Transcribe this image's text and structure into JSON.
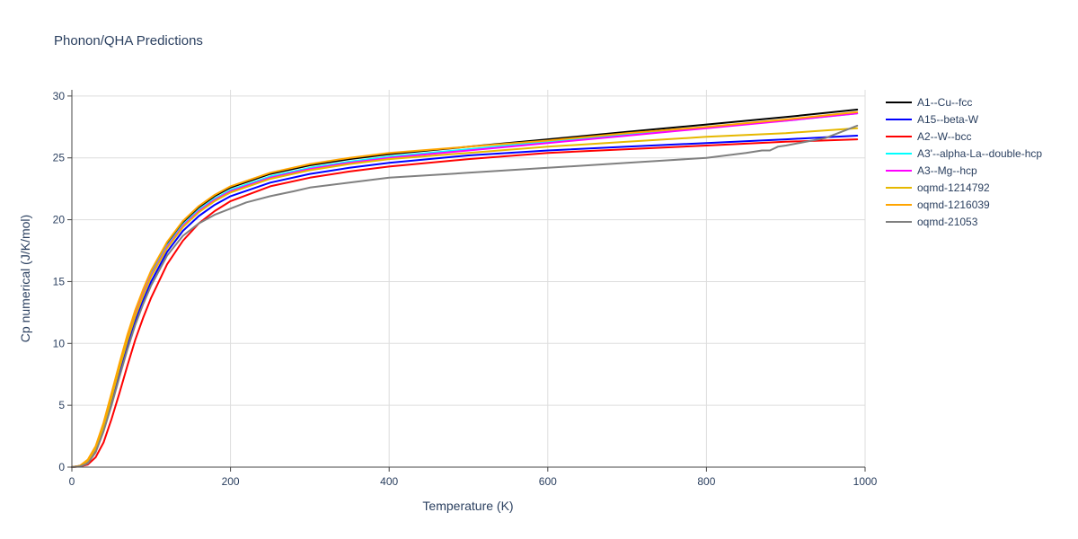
{
  "chart_data": {
    "type": "line",
    "title": "Phonon/QHA Predictions",
    "xlabel": "Temperature (K)",
    "ylabel": "Cp numerical (J/K/mol)",
    "xlim": [
      0,
      1000
    ],
    "ylim": [
      0,
      30.5
    ],
    "xticks": [
      0,
      200,
      400,
      600,
      800,
      1000
    ],
    "xtick_labels": [
      "0",
      "200",
      "400",
      "600",
      "800",
      "1000"
    ],
    "yticks": [
      0,
      5,
      10,
      15,
      20,
      25,
      30
    ],
    "ytick_labels": [
      "0",
      "5",
      "10",
      "15",
      "20",
      "25",
      "30"
    ],
    "grid": true,
    "legend_position": "top-right",
    "series": [
      {
        "name": "A1--Cu--fcc",
        "color": "#000000",
        "x": [
          0,
          10,
          20,
          30,
          40,
          50,
          60,
          70,
          80,
          90,
          100,
          120,
          140,
          160,
          180,
          200,
          250,
          300,
          350,
          400,
          500,
          600,
          700,
          800,
          900,
          990
        ],
        "y": [
          0,
          0.1,
          0.5,
          1.6,
          3.5,
          5.9,
          8.3,
          10.6,
          12.6,
          14.3,
          15.8,
          18.1,
          19.8,
          21.0,
          21.9,
          22.6,
          23.7,
          24.4,
          24.9,
          25.3,
          25.9,
          26.5,
          27.1,
          27.7,
          28.3,
          28.9
        ]
      },
      {
        "name": "A15--beta-W",
        "color": "#0000ff",
        "x": [
          0,
          10,
          20,
          30,
          40,
          50,
          60,
          70,
          80,
          90,
          100,
          120,
          140,
          160,
          180,
          200,
          250,
          300,
          350,
          400,
          500,
          600,
          700,
          800,
          900,
          990
        ],
        "y": [
          0,
          0.1,
          0.4,
          1.3,
          3.0,
          5.2,
          7.5,
          9.8,
          11.8,
          13.5,
          15.0,
          17.4,
          19.1,
          20.3,
          21.2,
          21.9,
          23.0,
          23.7,
          24.2,
          24.6,
          25.2,
          25.6,
          25.9,
          26.2,
          26.5,
          26.8
        ]
      },
      {
        "name": "A2--W--bcc",
        "color": "#ff0000",
        "x": [
          0,
          10,
          20,
          30,
          40,
          50,
          60,
          70,
          80,
          90,
          100,
          120,
          140,
          160,
          180,
          200,
          250,
          300,
          350,
          400,
          500,
          600,
          700,
          800,
          900,
          990
        ],
        "y": [
          0,
          0.05,
          0.2,
          0.8,
          2.0,
          3.9,
          6.0,
          8.2,
          10.3,
          12.1,
          13.7,
          16.4,
          18.3,
          19.7,
          20.7,
          21.5,
          22.7,
          23.4,
          23.9,
          24.3,
          24.9,
          25.4,
          25.7,
          26.0,
          26.3,
          26.5
        ]
      },
      {
        "name": "A3'--alpha-La--double-hcp",
        "color": "#00ffff",
        "x": [
          0,
          10,
          20,
          30,
          40,
          50,
          60,
          70,
          80,
          90,
          100,
          120,
          140,
          160,
          180,
          200,
          250,
          300,
          350,
          400,
          500,
          600,
          700,
          800,
          900,
          990
        ],
        "y": [
          0,
          0.1,
          0.5,
          1.6,
          3.4,
          5.8,
          8.2,
          10.4,
          12.4,
          14.1,
          15.6,
          17.9,
          19.6,
          20.8,
          21.7,
          22.4,
          23.5,
          24.2,
          24.7,
          25.1,
          25.7,
          26.3,
          26.9,
          27.5,
          28.0,
          28.6
        ]
      },
      {
        "name": "A3--Mg--hcp",
        "color": "#ff00ff",
        "x": [
          0,
          10,
          20,
          30,
          40,
          50,
          60,
          70,
          80,
          90,
          100,
          120,
          140,
          160,
          180,
          200,
          250,
          300,
          350,
          400,
          500,
          600,
          700,
          800,
          900,
          990
        ],
        "y": [
          0,
          0.1,
          0.5,
          1.5,
          3.3,
          5.7,
          8.1,
          10.3,
          12.3,
          14.0,
          15.5,
          17.8,
          19.5,
          20.7,
          21.6,
          22.3,
          23.4,
          24.1,
          24.6,
          25.0,
          25.6,
          26.2,
          26.8,
          27.4,
          28.0,
          28.6
        ]
      },
      {
        "name": "oqmd-1214792",
        "color": "#e6b800",
        "x": [
          0,
          10,
          20,
          30,
          40,
          50,
          60,
          70,
          80,
          90,
          100,
          120,
          140,
          160,
          180,
          200,
          250,
          300,
          350,
          400,
          500,
          600,
          700,
          800,
          900,
          990
        ],
        "y": [
          0,
          0.1,
          0.5,
          1.5,
          3.3,
          5.6,
          8.0,
          10.2,
          12.2,
          13.9,
          15.4,
          17.7,
          19.4,
          20.6,
          21.5,
          22.2,
          23.3,
          24.0,
          24.5,
          24.9,
          25.4,
          25.9,
          26.3,
          26.7,
          27.0,
          27.4
        ]
      },
      {
        "name": "oqmd-1216039",
        "color": "#ffa500",
        "x": [
          0,
          10,
          20,
          30,
          40,
          50,
          60,
          70,
          80,
          90,
          100,
          120,
          140,
          160,
          180,
          200,
          250,
          300,
          350,
          400,
          500,
          600,
          700,
          800,
          900,
          990
        ],
        "y": [
          0,
          0.1,
          0.6,
          1.7,
          3.6,
          6.0,
          8.4,
          10.7,
          12.7,
          14.4,
          15.9,
          18.2,
          19.9,
          21.1,
          22.0,
          22.7,
          23.8,
          24.5,
          25.0,
          25.4,
          25.9,
          26.4,
          27.0,
          27.5,
          28.1,
          28.7
        ]
      },
      {
        "name": "oqmd-21053",
        "color": "#808080",
        "x": [
          0,
          10,
          20,
          30,
          40,
          50,
          60,
          70,
          80,
          90,
          100,
          120,
          140,
          160,
          180,
          200,
          220,
          250,
          280,
          300,
          350,
          400,
          500,
          600,
          700,
          750,
          800,
          850,
          870,
          880,
          890,
          900,
          950,
          990
        ],
        "y": [
          0,
          0.05,
          0.3,
          1.2,
          2.9,
          5.0,
          7.3,
          9.5,
          11.5,
          13.2,
          14.7,
          17.1,
          18.7,
          19.7,
          20.4,
          20.9,
          21.4,
          21.9,
          22.3,
          22.6,
          23.0,
          23.4,
          23.8,
          24.2,
          24.6,
          24.8,
          25.0,
          25.4,
          25.6,
          25.6,
          25.9,
          26.0,
          26.6,
          27.6
        ]
      }
    ]
  }
}
